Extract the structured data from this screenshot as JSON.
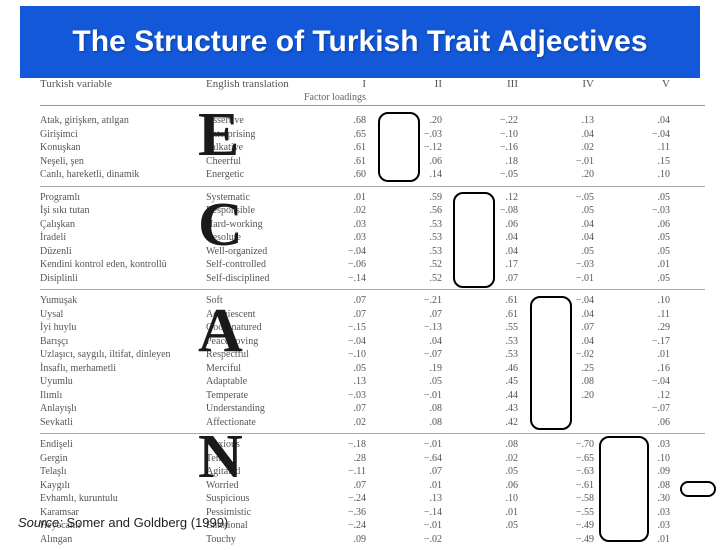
{
  "title": "The Structure of Turkish Trait Adjectives",
  "source_prefix": "Source:",
  "source_text": "Somer and Goldberg (1999)",
  "headers": {
    "turkish": "Turkish variable",
    "english": "English translation",
    "f1": "I",
    "f1sub": "Factor loadings",
    "f2": "II",
    "f3": "III",
    "f4": "IV",
    "f5": "V"
  },
  "letters": {
    "e": "E",
    "c": "C",
    "a": "A",
    "n": "N"
  },
  "groups": [
    {
      "turkish": [
        "Atak, girişken, atılgan",
        "Girişimci",
        "Konuşkan",
        "Neşeli, şen",
        "Canlı, hareketli, dinamik"
      ],
      "english": [
        "Assertive",
        "Enterprising",
        "Talkative",
        "Cheerful",
        "Energetic"
      ],
      "f1": [
        ".68",
        ".65",
        ".61",
        ".61",
        ".60"
      ],
      "f2": [
        ".20",
        "−.03",
        "−.12",
        ".06",
        ".14"
      ],
      "f3": [
        "−.22",
        "−.10",
        "−.16",
        ".18",
        "−.05"
      ],
      "f4": [
        ".13",
        ".04",
        ".02",
        "−.01",
        ".20"
      ],
      "f5": [
        ".04",
        "−.04",
        ".11",
        ".15",
        ".10"
      ]
    },
    {
      "turkish": [
        "Programlı",
        "İşi sıkı tutan",
        "Çalışkan",
        "İradeli",
        "Düzenli",
        "Kendini kontrol eden, kontrollü",
        "Disiplinli"
      ],
      "english": [
        "Systematic",
        "Responsible",
        "Hard-working",
        "Resolute",
        "Well-organized",
        "Self-controlled",
        "Self-disciplined"
      ],
      "f1": [
        ".01",
        ".02",
        ".03",
        ".03",
        "−.04",
        "−.06",
        "−.14"
      ],
      "f2": [
        ".59",
        ".56",
        ".53",
        ".53",
        ".53",
        ".52",
        ".52"
      ],
      "f3": [
        ".12",
        "−.08",
        ".06",
        ".04",
        ".04",
        ".17",
        ".07"
      ],
      "f4": [
        "−.05",
        ".05",
        ".04",
        ".04",
        ".05",
        "−.03",
        "−.01"
      ],
      "f5": [
        ".05",
        "−.03",
        ".06",
        ".05",
        ".05",
        ".01",
        ".05"
      ]
    },
    {
      "turkish": [
        "Yumuşak",
        "Uysal",
        "İyi huylu",
        "Barışçı",
        "Uzlaşıcı, saygılı, iltifat, dinleyen",
        "İnsaflı, merhametli",
        "Uyumlu",
        "Ilımlı",
        "Anlayışlı",
        "Sevkatli"
      ],
      "english": [
        "Soft",
        "Acquiescent",
        "Good-natured",
        "Peace-loving",
        "Respectful",
        "Merciful",
        "Adaptable",
        "Temperate",
        "Understanding",
        "Affectionate"
      ],
      "f1": [
        ".07",
        ".07",
        "−.15",
        "−.04",
        "−.10",
        ".05",
        ".13",
        "−.03",
        ".07",
        ".02"
      ],
      "f2": [
        "−.21",
        ".07",
        "−.13",
        ".04",
        "−.07",
        ".19",
        ".05",
        "−.01",
        ".08",
        ".08"
      ],
      "f3": [
        ".61",
        ".61",
        ".55",
        ".53",
        ".53",
        ".46",
        ".45",
        ".44",
        ".43",
        ".42"
      ],
      "f4": [
        "−.04",
        ".04",
        ".07",
        ".04",
        "−.02",
        ".25",
        ".08",
        ".20",
        " ",
        " "
      ],
      "f5": [
        ".10",
        ".11",
        ".29",
        "−.17",
        ".01",
        ".16",
        "−.04",
        ".12",
        "−.07",
        ".06"
      ]
    },
    {
      "turkish": [
        "Endişeli",
        "Gergin",
        "Telaşlı",
        "Kaygılı",
        "Evhamlı, kuruntulu",
        "Karamsar",
        "Heyecanlı",
        "Alıngan"
      ],
      "english": [
        "Anxious",
        "Tense",
        "Agitated",
        "Worried",
        "Suspicious",
        "Pessimistic",
        "Emotional",
        "Touchy"
      ],
      "f1": [
        "−.18",
        ".28",
        "−.11",
        ".07",
        "−.24",
        "−.36",
        "−.24",
        ".09"
      ],
      "f2": [
        "−.01",
        "−.64",
        ".07",
        ".01",
        ".13",
        "−.14",
        "−.01",
        "−.02"
      ],
      "f3": [
        ".08",
        ".02",
        ".05",
        ".06",
        ".10",
        ".01",
        " ",
        ".05"
      ],
      "f4": [
        "−.70",
        "−.65",
        "−.63",
        "−.61",
        "−.58",
        "−.55",
        "−.49",
        "−.49"
      ],
      "f5": [
        ".03",
        ".10",
        ".09",
        ".08",
        ".30",
        ".03",
        ".03",
        ".01"
      ]
    }
  ]
}
